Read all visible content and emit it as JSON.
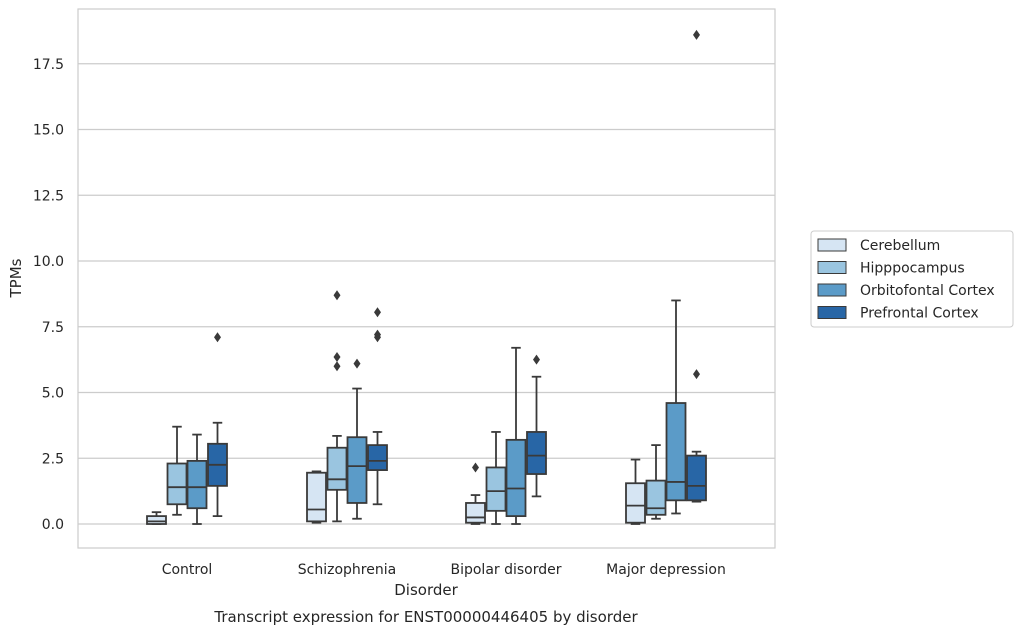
{
  "chart_data": {
    "type": "box",
    "caption": "Transcript expression for ENST00000446405 by disorder",
    "xlabel": "Disorder",
    "ylabel": "TPMs",
    "ylim": [
      -0.9,
      19.5
    ],
    "yticks": [
      0.0,
      2.5,
      5.0,
      7.5,
      10.0,
      12.5,
      15.0,
      17.5
    ],
    "ytick_labels": [
      "0.0",
      "2.5",
      "5.0",
      "7.5",
      "10.0",
      "12.5",
      "15.0",
      "17.5"
    ],
    "grid": "horizontal",
    "legend_position": "right",
    "categories": [
      "Control",
      "Schizophrenia",
      "Bipolar disorder",
      "Major depression"
    ],
    "series": [
      {
        "name": "Cerebellum",
        "color": "#d6e5f3",
        "boxes": [
          {
            "whisker_low": 0.0,
            "q1": 0.0,
            "median": 0.1,
            "q3": 0.3,
            "whisker_high": 0.45,
            "outliers": []
          },
          {
            "whisker_low": 0.05,
            "q1": 0.1,
            "median": 0.55,
            "q3": 1.95,
            "whisker_high": 2.0,
            "outliers": []
          },
          {
            "whisker_low": 0.0,
            "q1": 0.05,
            "median": 0.25,
            "q3": 0.8,
            "whisker_high": 1.1,
            "outliers": [
              2.15
            ]
          },
          {
            "whisker_low": 0.0,
            "q1": 0.05,
            "median": 0.7,
            "q3": 1.55,
            "whisker_high": 2.45,
            "outliers": []
          }
        ]
      },
      {
        "name": "Hipppocampus",
        "color": "#9ac5e0",
        "boxes": [
          {
            "whisker_low": 0.35,
            "q1": 0.75,
            "median": 1.4,
            "q3": 2.3,
            "whisker_high": 3.7,
            "outliers": []
          },
          {
            "whisker_low": 0.1,
            "q1": 1.3,
            "median": 1.7,
            "q3": 2.9,
            "whisker_high": 3.35,
            "outliers": [
              6.0,
              6.35,
              8.7
            ]
          },
          {
            "whisker_low": 0.0,
            "q1": 0.5,
            "median": 1.25,
            "q3": 2.15,
            "whisker_high": 3.5,
            "outliers": []
          },
          {
            "whisker_low": 0.2,
            "q1": 0.35,
            "median": 0.6,
            "q3": 1.65,
            "whisker_high": 3.0,
            "outliers": []
          }
        ]
      },
      {
        "name": "Orbitofontal Cortex",
        "color": "#5b9bc8",
        "boxes": [
          {
            "whisker_low": 0.0,
            "q1": 0.6,
            "median": 1.4,
            "q3": 2.4,
            "whisker_high": 3.4,
            "outliers": []
          },
          {
            "whisker_low": 0.2,
            "q1": 0.8,
            "median": 2.2,
            "q3": 3.3,
            "whisker_high": 5.15,
            "outliers": [
              6.1
            ]
          },
          {
            "whisker_low": 0.0,
            "q1": 0.3,
            "median": 1.35,
            "q3": 3.2,
            "whisker_high": 6.7,
            "outliers": []
          },
          {
            "whisker_low": 0.4,
            "q1": 0.9,
            "median": 1.6,
            "q3": 4.6,
            "whisker_high": 8.5,
            "outliers": []
          }
        ]
      },
      {
        "name": "Prefrontal Cortex",
        "color": "#2866a6",
        "boxes": [
          {
            "whisker_low": 0.3,
            "q1": 1.45,
            "median": 2.25,
            "q3": 3.05,
            "whisker_high": 3.85,
            "outliers": [
              7.1
            ]
          },
          {
            "whisker_low": 0.75,
            "q1": 2.05,
            "median": 2.4,
            "q3": 3.0,
            "whisker_high": 3.5,
            "outliers": [
              7.2,
              7.1,
              8.05
            ]
          },
          {
            "whisker_low": 1.05,
            "q1": 1.9,
            "median": 2.6,
            "q3": 3.5,
            "whisker_high": 5.6,
            "outliers": [
              6.25
            ]
          },
          {
            "whisker_low": 0.85,
            "q1": 0.9,
            "median": 1.45,
            "q3": 2.6,
            "whisker_high": 2.75,
            "outliers": [
              5.7,
              18.6
            ]
          }
        ]
      }
    ]
  }
}
